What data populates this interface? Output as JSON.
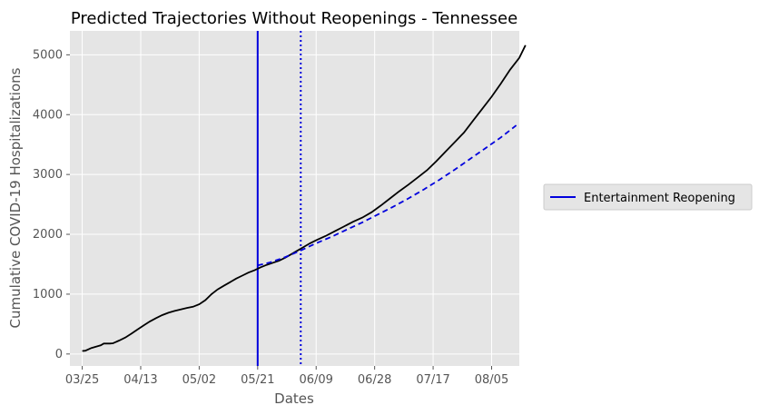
{
  "chart_data": {
    "type": "line",
    "title": "Predicted Trajectories Without Reopenings - Tennessee",
    "xlabel": "Dates",
    "ylabel": "Cumulative COVID-19 Hospitalizations",
    "x_ticks": [
      "03/25",
      "04/13",
      "05/02",
      "05/21",
      "06/09",
      "06/28",
      "07/17",
      "08/05"
    ],
    "y_ticks": [
      0,
      1000,
      2000,
      3000,
      4000,
      5000
    ],
    "xlim": [
      "03/21",
      "08/14"
    ],
    "ylim": [
      -200,
      5400
    ],
    "grid": true,
    "legend_position": "right",
    "series": [
      {
        "kind": "observed",
        "color": "#000000",
        "style": "solid",
        "points": [
          [
            "03/25",
            50
          ],
          [
            "03/26",
            55
          ],
          [
            "03/28",
            100
          ],
          [
            "03/30",
            130
          ],
          [
            "03/31",
            145
          ],
          [
            "04/01",
            175
          ],
          [
            "04/03",
            175
          ],
          [
            "04/04",
            180
          ],
          [
            "04/06",
            225
          ],
          [
            "04/08",
            275
          ],
          [
            "04/10",
            340
          ],
          [
            "04/12",
            410
          ],
          [
            "04/14",
            480
          ],
          [
            "04/16",
            545
          ],
          [
            "04/18",
            600
          ],
          [
            "04/20",
            650
          ],
          [
            "04/22",
            690
          ],
          [
            "04/24",
            720
          ],
          [
            "04/26",
            745
          ],
          [
            "04/28",
            770
          ],
          [
            "04/30",
            790
          ],
          [
            "05/02",
            830
          ],
          [
            "05/04",
            900
          ],
          [
            "05/06",
            1000
          ],
          [
            "05/08",
            1080
          ],
          [
            "05/10",
            1140
          ],
          [
            "05/12",
            1200
          ],
          [
            "05/14",
            1260
          ],
          [
            "05/16",
            1310
          ],
          [
            "05/18",
            1360
          ],
          [
            "05/20",
            1400
          ],
          [
            "05/22",
            1450
          ],
          [
            "05/24",
            1490
          ],
          [
            "05/26",
            1525
          ],
          [
            "05/28",
            1560
          ],
          [
            "05/30",
            1610
          ],
          [
            "06/01",
            1670
          ],
          [
            "06/03",
            1730
          ],
          [
            "06/05",
            1790
          ],
          [
            "06/07",
            1850
          ],
          [
            "06/09",
            1900
          ],
          [
            "06/12",
            1970
          ],
          [
            "06/15",
            2050
          ],
          [
            "06/18",
            2130
          ],
          [
            "06/21",
            2210
          ],
          [
            "06/24",
            2280
          ],
          [
            "06/27",
            2370
          ],
          [
            "06/30",
            2480
          ],
          [
            "07/03",
            2600
          ],
          [
            "07/06",
            2720
          ],
          [
            "07/09",
            2830
          ],
          [
            "07/12",
            2950
          ],
          [
            "07/15",
            3070
          ],
          [
            "07/18",
            3220
          ],
          [
            "07/21",
            3380
          ],
          [
            "07/24",
            3540
          ],
          [
            "07/27",
            3700
          ],
          [
            "07/30",
            3900
          ],
          [
            "08/02",
            4100
          ],
          [
            "08/05",
            4300
          ],
          [
            "08/08",
            4520
          ],
          [
            "08/11",
            4750
          ],
          [
            "08/14",
            4950
          ],
          [
            "08/16",
            5160
          ]
        ]
      },
      {
        "kind": "predicted",
        "color": "#0000dd",
        "style": "dashed",
        "points": [
          [
            "05/21",
            1480
          ],
          [
            "05/25",
            1530
          ],
          [
            "05/30",
            1620
          ],
          [
            "06/04",
            1730
          ],
          [
            "06/09",
            1850
          ],
          [
            "06/14",
            1960
          ],
          [
            "06/19",
            2080
          ],
          [
            "06/24",
            2200
          ],
          [
            "06/29",
            2330
          ],
          [
            "07/04",
            2460
          ],
          [
            "07/09",
            2600
          ],
          [
            "07/14",
            2750
          ],
          [
            "07/19",
            2910
          ],
          [
            "07/24",
            3080
          ],
          [
            "07/29",
            3260
          ],
          [
            "08/03",
            3440
          ],
          [
            "08/08",
            3620
          ],
          [
            "08/13",
            3820
          ]
        ]
      }
    ],
    "vlines": [
      {
        "x": "05/21",
        "color": "#0000dd",
        "style": "solid",
        "legend": "Entertainment Reopening"
      },
      {
        "x": "06/04",
        "color": "#0000dd",
        "style": "dotted"
      }
    ]
  }
}
